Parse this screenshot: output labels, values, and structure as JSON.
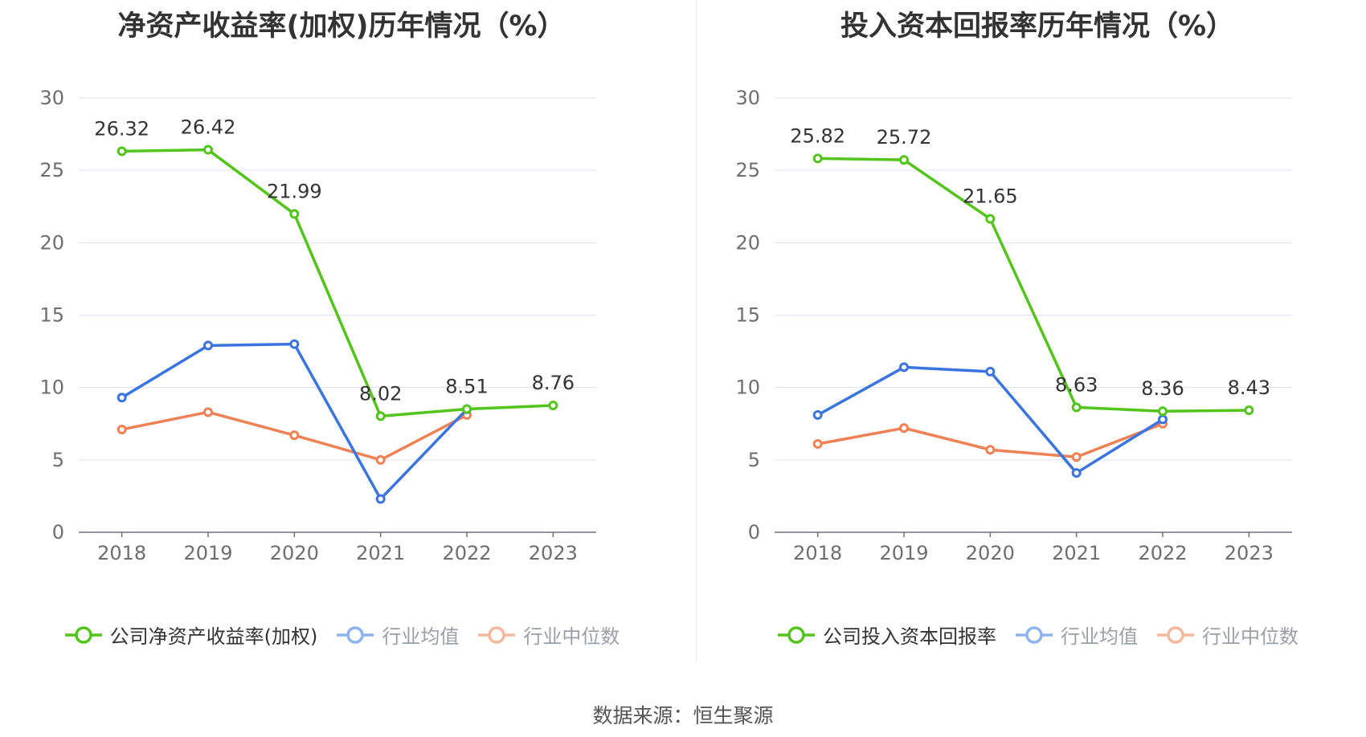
{
  "source": "数据来源：恒生聚源",
  "chart_data": [
    {
      "type": "line",
      "title": "净资产收益率(加权)历年情况（%）",
      "categories": [
        "2018",
        "2019",
        "2020",
        "2021",
        "2022",
        "2023"
      ],
      "ylim": [
        0,
        30
      ],
      "yticks": [
        "0",
        "5",
        "10",
        "15",
        "20",
        "25",
        "30"
      ],
      "grid": true,
      "legend_position": "bottom",
      "series": [
        {
          "name": "公司净资产收益率(加权)",
          "color": "#52c41a",
          "values": [
            26.32,
            26.42,
            21.99,
            8.02,
            8.51,
            8.76
          ],
          "labels": [
            "26.32",
            "26.42",
            "21.99",
            "8.02",
            "8.51",
            "8.76"
          ]
        },
        {
          "name": "行业均值",
          "color": "#3a74e0",
          "legend_color": "#8fb3f0",
          "values": [
            9.3,
            12.9,
            13.0,
            2.3,
            8.5,
            null
          ]
        },
        {
          "name": "行业中位数",
          "color": "#f08155",
          "legend_color": "#f7b79c",
          "values": [
            7.1,
            8.3,
            6.7,
            5.0,
            8.1,
            null
          ]
        }
      ]
    },
    {
      "type": "line",
      "title": "投入资本回报率历年情况（%）",
      "categories": [
        "2018",
        "2019",
        "2020",
        "2021",
        "2022",
        "2023"
      ],
      "ylim": [
        0,
        30
      ],
      "yticks": [
        "0",
        "5",
        "10",
        "15",
        "20",
        "25",
        "30"
      ],
      "grid": true,
      "legend_position": "bottom",
      "series": [
        {
          "name": "公司投入资本回报率",
          "color": "#52c41a",
          "values": [
            25.82,
            25.72,
            21.65,
            8.63,
            8.36,
            8.43
          ],
          "labels": [
            "25.82",
            "25.72",
            "21.65",
            "8.63",
            "8.36",
            "8.43"
          ]
        },
        {
          "name": "行业均值",
          "color": "#3a74e0",
          "legend_color": "#8fb3f0",
          "values": [
            8.1,
            11.4,
            11.1,
            4.1,
            7.8,
            null
          ]
        },
        {
          "name": "行业中位数",
          "color": "#f08155",
          "legend_color": "#f7b79c",
          "values": [
            6.1,
            7.2,
            5.7,
            5.2,
            7.5,
            null
          ]
        }
      ]
    }
  ]
}
